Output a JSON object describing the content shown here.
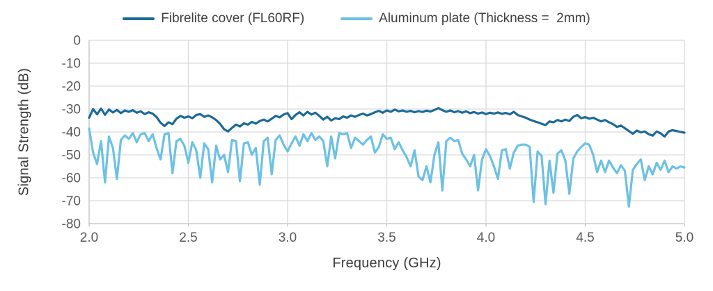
{
  "chart_data": {
    "type": "line",
    "title": "",
    "xlabel": "Frequency (GHz)",
    "ylabel": "Signal Strength (dB)",
    "xlim": [
      2.0,
      5.0
    ],
    "ylim": [
      -80,
      0
    ],
    "grid": true,
    "legend_position": "top",
    "x_ticks": [
      2.0,
      2.5,
      3.0,
      3.5,
      4.0,
      4.5,
      5.0
    ],
    "x_tick_labels": [
      "2.0",
      "2.5",
      "3.0",
      "3.5",
      "4.0",
      "4.5",
      "5.0"
    ],
    "y_ticks": [
      0,
      -10,
      -20,
      -30,
      -40,
      -50,
      -60,
      -70,
      -80
    ],
    "y_tick_labels": [
      "0",
      "-10",
      "-20",
      "-30",
      "-40",
      "-50",
      "-60",
      "-70",
      "-80"
    ],
    "colors": {
      "gridline": "#d9d9d9",
      "axis": "#bfbfbf",
      "tick_label": "#595959",
      "axis_title": "#3a3a3a"
    },
    "series": [
      {
        "name": "Fibrelite cover (FL60RF)",
        "color": "#1b6a99",
        "x_start": 2.0,
        "x_step": 0.02,
        "values": [
          -33.8,
          -30.0,
          -32.3,
          -29.8,
          -32.5,
          -30.2,
          -31.5,
          -30.4,
          -31.8,
          -30.6,
          -31.2,
          -30.5,
          -31.6,
          -31.0,
          -32.2,
          -31.4,
          -32.0,
          -33.5,
          -36.0,
          -37.4,
          -35.8,
          -36.6,
          -34.2,
          -33.0,
          -33.8,
          -33.2,
          -34.0,
          -32.6,
          -32.2,
          -33.4,
          -32.8,
          -33.6,
          -34.8,
          -36.5,
          -38.8,
          -39.8,
          -38.2,
          -36.8,
          -37.6,
          -36.2,
          -36.8,
          -35.6,
          -36.4,
          -35.2,
          -34.6,
          -35.4,
          -34.2,
          -33.0,
          -33.6,
          -32.4,
          -31.8,
          -34.4,
          -32.6,
          -31.4,
          -32.8,
          -31.2,
          -32.4,
          -31.6,
          -33.0,
          -34.6,
          -33.4,
          -35.0,
          -34.0,
          -34.4,
          -33.2,
          -33.8,
          -32.8,
          -33.4,
          -32.6,
          -32.0,
          -32.8,
          -32.2,
          -31.4,
          -30.8,
          -31.6,
          -30.6,
          -31.2,
          -30.2,
          -31.0,
          -30.6,
          -31.2,
          -30.8,
          -31.4,
          -30.9,
          -31.3,
          -30.7,
          -31.1,
          -30.4,
          -29.6,
          -30.5,
          -31.2,
          -30.6,
          -31.4,
          -30.9,
          -31.6,
          -31.0,
          -31.8,
          -31.3,
          -32.0,
          -31.5,
          -32.2,
          -31.6,
          -32.0,
          -31.5,
          -32.1,
          -31.7,
          -32.3,
          -31.2,
          -32.6,
          -33.2,
          -33.8,
          -34.6,
          -35.2,
          -35.8,
          -36.4,
          -37.0,
          -35.4,
          -35.8,
          -34.8,
          -35.4,
          -34.6,
          -35.2,
          -33.4,
          -32.6,
          -34.0,
          -33.5,
          -34.2,
          -33.8,
          -34.6,
          -35.4,
          -34.8,
          -35.8,
          -36.6,
          -37.8,
          -37.2,
          -38.4,
          -39.6,
          -40.8,
          -39.4,
          -40.2,
          -39.8,
          -41.0,
          -41.6,
          -39.8,
          -40.6,
          -42.0,
          -39.8,
          -39.2,
          -39.6,
          -40.0,
          -40.3
        ]
      },
      {
        "name": "Aluminum plate (Thickness =  2mm)",
        "color": "#6cc1e4",
        "x_start": 2.0,
        "x_step": 0.02,
        "values": [
          -38.5,
          -49.0,
          -54.0,
          -44.0,
          -62.0,
          -42.0,
          -47.0,
          -60.5,
          -43.5,
          -41.5,
          -43.0,
          -40.5,
          -44.5,
          -41.0,
          -40.5,
          -44.0,
          -41.0,
          -47.0,
          -52.0,
          -41.0,
          -40.5,
          -58.0,
          -44.0,
          -43.0,
          -46.0,
          -53.5,
          -44.5,
          -48.0,
          -60.0,
          -45.0,
          -47.5,
          -62.0,
          -46.0,
          -52.0,
          -50.0,
          -57.5,
          -43.5,
          -44.0,
          -61.5,
          -45.0,
          -44.5,
          -50.0,
          -47.0,
          -63.0,
          -44.0,
          -42.5,
          -58.5,
          -43.5,
          -41.5,
          -45.5,
          -48.5,
          -45.0,
          -42.0,
          -46.0,
          -41.0,
          -44.0,
          -40.5,
          -43.5,
          -42.0,
          -44.0,
          -55.0,
          -42.0,
          -51.5,
          -40.5,
          -41.0,
          -40.5,
          -47.0,
          -42.5,
          -44.0,
          -45.5,
          -43.5,
          -42.0,
          -49.0,
          -46.5,
          -41.0,
          -43.0,
          -42.5,
          -47.5,
          -44.5,
          -48.0,
          -51.0,
          -55.0,
          -48.0,
          -59.5,
          -61.0,
          -55.0,
          -62.0,
          -50.0,
          -44.5,
          -65.5,
          -44.0,
          -42.5,
          -44.0,
          -43.5,
          -49.5,
          -52.0,
          -55.0,
          -50.0,
          -65.5,
          -52.0,
          -47.5,
          -50.5,
          -55.0,
          -60.5,
          -48.0,
          -47.5,
          -56.0,
          -49.0,
          -46.0,
          -45.5,
          -45.5,
          -46.5,
          -70.5,
          -48.5,
          -50.5,
          -71.5,
          -52.5,
          -66.5,
          -49.5,
          -48.0,
          -52.5,
          -67.0,
          -51.5,
          -48.5,
          -46.5,
          -45.0,
          -45.5,
          -50.0,
          -57.5,
          -52.5,
          -57.5,
          -52.5,
          -55.5,
          -58.0,
          -54.5,
          -57.0,
          -72.5,
          -56.5,
          -54.0,
          -52.0,
          -61.0,
          -55.0,
          -58.5,
          -53.5,
          -56.5,
          -52.5,
          -57.5,
          -55.0,
          -56.0,
          -55.0,
          -55.5
        ]
      }
    ]
  }
}
